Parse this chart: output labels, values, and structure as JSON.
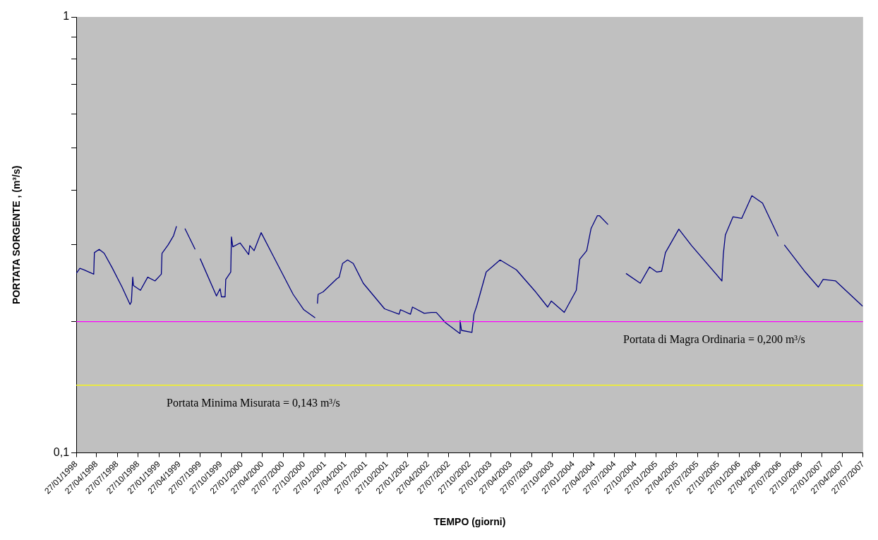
{
  "chart_data": {
    "type": "line",
    "xlabel": "TEMPO (giorni)",
    "ylabel": "PORTATA SORGENTE , (m³/s)",
    "log": "y",
    "grid": false,
    "legend": false,
    "marker": "none",
    "line_style": "solid",
    "xlim": [
      "1998-01-27",
      "2007-07-27"
    ],
    "xticks": [
      {
        "value": "1998-01-27",
        "label": "27/01/1998"
      },
      {
        "value": "1998-04-27",
        "label": "27/04/1998"
      },
      {
        "value": "1998-07-27",
        "label": "27/07/1998"
      },
      {
        "value": "1998-10-27",
        "label": "27/10/1998"
      },
      {
        "value": "1999-01-27",
        "label": "27/01/1999"
      },
      {
        "value": "1999-04-27",
        "label": "27/04/1999"
      },
      {
        "value": "1999-07-27",
        "label": "27/07/1999"
      },
      {
        "value": "1999-10-27",
        "label": "27/10/1999"
      },
      {
        "value": "2000-01-27",
        "label": "27/01/2000"
      },
      {
        "value": "2000-04-27",
        "label": "27/04/2000"
      },
      {
        "value": "2000-07-27",
        "label": "27/07/2000"
      },
      {
        "value": "2000-10-27",
        "label": "27/10/2000"
      },
      {
        "value": "2001-01-27",
        "label": "27/01/2001"
      },
      {
        "value": "2001-04-27",
        "label": "27/04/2001"
      },
      {
        "value": "2001-07-27",
        "label": "27/07/2001"
      },
      {
        "value": "2001-10-27",
        "label": "27/10/2001"
      },
      {
        "value": "2002-01-27",
        "label": "27/01/2002"
      },
      {
        "value": "2002-04-27",
        "label": "27/04/2002"
      },
      {
        "value": "2002-07-27",
        "label": "27/07/2002"
      },
      {
        "value": "2002-10-27",
        "label": "27/10/2002"
      },
      {
        "value": "2003-01-27",
        "label": "27/01/2003"
      },
      {
        "value": "2003-04-27",
        "label": "27/04/2003"
      },
      {
        "value": "2003-07-27",
        "label": "27/07/2003"
      },
      {
        "value": "2003-10-27",
        "label": "27/10/2003"
      },
      {
        "value": "2004-01-27",
        "label": "27/01/2004"
      },
      {
        "value": "2004-04-27",
        "label": "27/04/2004"
      },
      {
        "value": "2004-07-27",
        "label": "27/07/2004"
      },
      {
        "value": "2004-10-27",
        "label": "27/10/2004"
      },
      {
        "value": "2005-01-27",
        "label": "27/01/2005"
      },
      {
        "value": "2005-04-27",
        "label": "27/04/2005"
      },
      {
        "value": "2005-07-27",
        "label": "27/07/2005"
      },
      {
        "value": "2005-10-27",
        "label": "27/10/2005"
      },
      {
        "value": "2006-01-27",
        "label": "27/01/2006"
      },
      {
        "value": "2006-04-27",
        "label": "27/04/2006"
      },
      {
        "value": "2006-07-27",
        "label": "27/07/2006"
      },
      {
        "value": "2006-10-27",
        "label": "27/10/2006"
      },
      {
        "value": "2007-01-27",
        "label": "27/01/2007"
      },
      {
        "value": "2007-04-27",
        "label": "27/04/2007"
      },
      {
        "value": "2007-07-27",
        "label": "27/07/2007"
      }
    ],
    "ylim": [
      0.1,
      1
    ],
    "yticks": [
      {
        "value": 0.1,
        "label": "0,1"
      },
      {
        "value": 0.2,
        "label": null
      },
      {
        "value": 0.3,
        "label": null
      },
      {
        "value": 0.4,
        "label": null
      },
      {
        "value": 0.5,
        "label": null
      },
      {
        "value": 0.6,
        "label": null
      },
      {
        "value": 0.7,
        "label": null
      },
      {
        "value": 0.8,
        "label": null
      },
      {
        "value": 0.9,
        "label": null
      },
      1
    ],
    "ref_lines": [
      {
        "axis": "y",
        "value": 0.2,
        "label": "Portata di Magra Ordinaria = 0,200 m³/s",
        "color": "#ff00ff"
      },
      {
        "axis": "y",
        "value": 0.143,
        "label": "Portata Minima Misurata = 0,143 m³/s",
        "color": "#ffff00"
      }
    ],
    "series": [
      {
        "color": "#000080",
        "x": [
          "1998-01-27",
          "1998-02-12",
          "1998-03-01",
          "1998-04-14",
          "1998-04-17",
          "1998-05-08",
          "1998-05-30",
          "1998-07-04",
          "1998-08-17",
          "1998-09-21",
          "1998-09-27",
          "1998-10-03",
          "1998-10-06",
          "1998-11-06",
          "1998-12-08",
          "1999-01-09",
          "1999-02-06",
          "1999-02-09",
          "1999-03-08",
          "1999-04-01",
          "1999-04-14",
          "1999-05-01",
          "1999-05-21",
          "1999-07-05",
          "1999-07-15",
          "1999-07-27",
          "1999-10-07",
          "1999-10-23",
          "1999-10-29",
          "1999-11-14",
          "1999-11-17",
          "1999-12-09",
          "1999-12-12",
          "1999-12-18",
          "2000-01-19",
          "2000-02-26",
          "2000-03-02",
          "2000-03-21",
          "2000-04-21",
          "2000-06-13",
          "2000-09-09",
          "2000-10-26",
          "2000-12-15",
          "2000-12-18",
          "2000-12-25",
          "2000-12-28",
          "2001-01-19",
          "2001-03-21",
          "2001-03-31",
          "2001-04-15",
          "2001-05-07",
          "2001-06-01",
          "2001-07-15",
          "2001-10-17",
          "2001-12-20",
          "2001-12-26",
          "2002-02-08",
          "2002-02-17",
          "2002-04-10",
          "2002-05-11",
          "2002-06-02",
          "2002-07-12",
          "2002-09-13",
          "2002-09-15",
          "2002-09-21",
          "2002-11-06",
          "2002-11-15",
          "2002-11-28",
          "2003-01-08",
          "2003-03-10",
          "2003-05-21",
          "2003-08-14",
          "2003-10-06",
          "2003-10-22",
          "2003-12-18",
          "2004-02-09",
          "2004-02-24",
          "2004-03-26",
          "2004-04-14",
          "2004-05-12",
          "2004-05-21",
          "2004-06-28",
          "2004-08-15",
          "2004-09-15",
          "2004-11-17",
          "2004-12-28",
          "2005-01-28",
          "2005-02-19",
          "2005-03-08",
          "2005-05-06",
          "2005-07-01",
          "2005-11-12",
          "2005-11-18",
          "2005-11-27",
          "2005-12-31",
          "2006-02-07",
          "2006-03-24",
          "2006-05-10",
          "2006-07-18",
          "2006-07-28",
          "2006-08-14",
          "2006-11-14",
          "2007-01-11",
          "2007-02-01",
          "2007-03-28",
          "2007-06-11",
          "2007-07-25"
        ],
        "values": [
          0.258,
          0.265,
          0.263,
          0.257,
          0.288,
          0.293,
          0.287,
          0.266,
          0.24,
          0.219,
          0.222,
          0.253,
          0.242,
          0.236,
          0.253,
          0.248,
          0.257,
          0.287,
          0.3,
          0.315,
          0.331,
          null,
          0.327,
          0.293,
          null,
          0.279,
          0.229,
          0.238,
          0.228,
          0.228,
          0.25,
          0.26,
          0.313,
          0.297,
          0.303,
          0.285,
          0.299,
          0.291,
          0.32,
          0.283,
          0.231,
          0.213,
          0.204,
          null,
          0.22,
          0.231,
          0.234,
          0.251,
          0.253,
          0.272,
          0.277,
          0.272,
          0.245,
          0.214,
          0.208,
          0.213,
          0.208,
          0.216,
          0.209,
          0.21,
          0.21,
          0.199,
          0.188,
          0.201,
          0.191,
          0.189,
          0.208,
          0.218,
          0.26,
          0.277,
          0.263,
          0.234,
          0.216,
          0.223,
          0.21,
          0.236,
          0.278,
          0.291,
          0.327,
          0.35,
          0.35,
          0.334,
          null,
          0.258,
          0.245,
          0.267,
          0.26,
          0.261,
          0.288,
          0.326,
          0.299,
          0.248,
          0.285,
          0.316,
          0.348,
          0.345,
          0.389,
          0.374,
          0.314,
          null,
          0.3,
          0.26,
          0.24,
          0.25,
          0.248,
          0.228,
          0.217
        ]
      }
    ]
  }
}
